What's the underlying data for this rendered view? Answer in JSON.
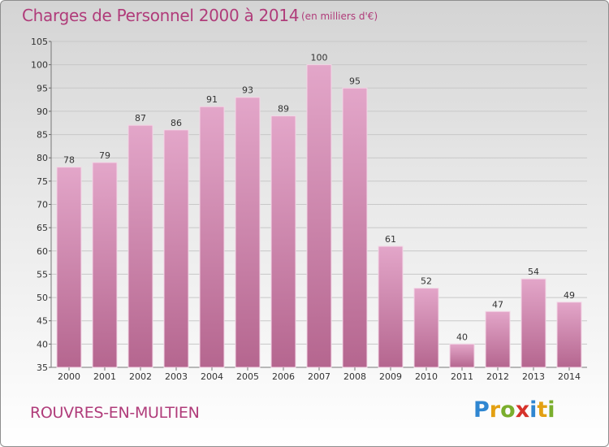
{
  "header": {
    "title": "Charges de Personnel 2000 à 2014",
    "subtitle": "(en milliers d'€)"
  },
  "footer": {
    "town": "ROUVRES-EN-MULTIEN",
    "logo_text": "Proxiti"
  },
  "colors": {
    "accent": "#b03c7a",
    "bar_light": "#e3a6c9",
    "bar_dark": "#b5668f"
  },
  "chart_data": {
    "type": "bar",
    "categories": [
      "2000",
      "2001",
      "2002",
      "2003",
      "2004",
      "2005",
      "2006",
      "2007",
      "2008",
      "2009",
      "2010",
      "2011",
      "2012",
      "2013",
      "2014"
    ],
    "values": [
      78,
      79,
      87,
      86,
      91,
      93,
      89,
      100,
      95,
      61,
      52,
      40,
      47,
      54,
      49
    ],
    "title": "Charges de Personnel 2000 à 2014",
    "subtitle": "(en milliers d'€)",
    "ylim": [
      35,
      105
    ],
    "yticks": [
      35,
      40,
      45,
      50,
      55,
      60,
      65,
      70,
      75,
      80,
      85,
      90,
      95,
      100,
      105
    ],
    "grid": true,
    "data_labels": true
  }
}
